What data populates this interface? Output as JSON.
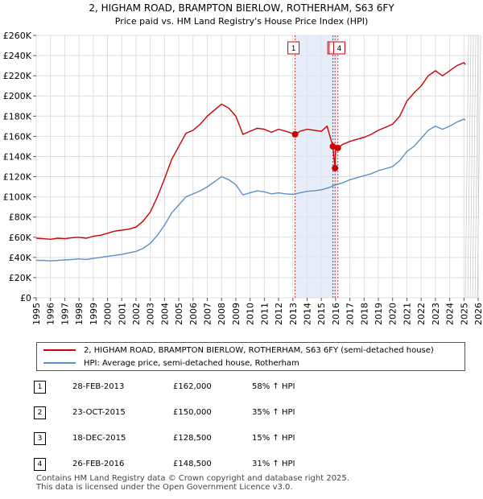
{
  "chart_data": {
    "type": "line",
    "title_line1": "2, HIGHAM ROAD, BRAMPTON BIERLOW, ROTHERHAM, S63 6FY",
    "title_line2": "Price paid vs. HM Land Registry's House Price Index (HPI)",
    "xlim": [
      1995,
      2026
    ],
    "ylim": [
      0,
      260000
    ],
    "x_ticks": [
      "1995",
      "1996",
      "1997",
      "1998",
      "1999",
      "2000",
      "2001",
      "2002",
      "2003",
      "2004",
      "2005",
      "2006",
      "2007",
      "2008",
      "2009",
      "2010",
      "2011",
      "2012",
      "2013",
      "2014",
      "2015",
      "2016",
      "2017",
      "2018",
      "2019",
      "2020",
      "2021",
      "2022",
      "2023",
      "2024",
      "2025",
      "2026"
    ],
    "y_ticks": [
      "£0",
      "£20K",
      "£40K",
      "£60K",
      "£80K",
      "£100K",
      "£120K",
      "£140K",
      "£160K",
      "£180K",
      "£200K",
      "£220K",
      "£240K",
      "£260K"
    ],
    "future_region_start": 2025.1,
    "highlight_band": [
      2013.16,
      2016.16
    ],
    "series": [
      {
        "name": "2, HIGHAM ROAD, BRAMPTON BIERLOW, ROTHERHAM, S63 6FY (semi-detached house)",
        "color": "#cc0000",
        "points": [
          [
            1995.0,
            59000
          ],
          [
            1995.5,
            58500
          ],
          [
            1996.0,
            58000
          ],
          [
            1996.5,
            59000
          ],
          [
            1997.0,
            58500
          ],
          [
            1997.5,
            59500
          ],
          [
            1998.0,
            60000
          ],
          [
            1998.5,
            59000
          ],
          [
            1999.0,
            61000
          ],
          [
            1999.5,
            62000
          ],
          [
            2000.0,
            64000
          ],
          [
            2000.5,
            66000
          ],
          [
            2001.0,
            67000
          ],
          [
            2001.5,
            68000
          ],
          [
            2002.0,
            70000
          ],
          [
            2002.5,
            76000
          ],
          [
            2003.0,
            85000
          ],
          [
            2003.5,
            100000
          ],
          [
            2004.0,
            118000
          ],
          [
            2004.5,
            137000
          ],
          [
            2005.0,
            150000
          ],
          [
            2005.5,
            163000
          ],
          [
            2006.0,
            166000
          ],
          [
            2006.5,
            172000
          ],
          [
            2007.0,
            180000
          ],
          [
            2007.5,
            186000
          ],
          [
            2008.0,
            192000
          ],
          [
            2008.5,
            188000
          ],
          [
            2009.0,
            180000
          ],
          [
            2009.5,
            162000
          ],
          [
            2010.0,
            165000
          ],
          [
            2010.5,
            168000
          ],
          [
            2011.0,
            167000
          ],
          [
            2011.5,
            164000
          ],
          [
            2012.0,
            167000
          ],
          [
            2012.5,
            165000
          ],
          [
            2013.16,
            162000
          ],
          [
            2013.5,
            165000
          ],
          [
            2014.0,
            167000
          ],
          [
            2014.5,
            166000
          ],
          [
            2015.0,
            165000
          ],
          [
            2015.4,
            170000
          ],
          [
            2015.81,
            150000
          ],
          [
            2015.96,
            128500
          ],
          [
            2016.0,
            147000
          ],
          [
            2016.16,
            148500
          ],
          [
            2016.5,
            152000
          ],
          [
            2017.0,
            155000
          ],
          [
            2017.5,
            157000
          ],
          [
            2018.0,
            159000
          ],
          [
            2018.5,
            162000
          ],
          [
            2019.0,
            166000
          ],
          [
            2019.5,
            169000
          ],
          [
            2020.0,
            172000
          ],
          [
            2020.5,
            180000
          ],
          [
            2021.0,
            195000
          ],
          [
            2021.5,
            203000
          ],
          [
            2022.0,
            210000
          ],
          [
            2022.5,
            220000
          ],
          [
            2023.0,
            225000
          ],
          [
            2023.5,
            220000
          ],
          [
            2024.0,
            225000
          ],
          [
            2024.5,
            230000
          ],
          [
            2025.0,
            233000
          ],
          [
            2025.1,
            231000
          ]
        ]
      },
      {
        "name": "HPI: Average price, semi-detached house, Rotherham",
        "color": "#5b8fcc",
        "points": [
          [
            1995.0,
            37000
          ],
          [
            1995.5,
            37000
          ],
          [
            1996.0,
            36500
          ],
          [
            1996.5,
            37000
          ],
          [
            1997.0,
            37500
          ],
          [
            1997.5,
            38000
          ],
          [
            1998.0,
            38500
          ],
          [
            1998.5,
            38000
          ],
          [
            1999.0,
            39000
          ],
          [
            1999.5,
            40000
          ],
          [
            2000.0,
            41000
          ],
          [
            2000.5,
            42000
          ],
          [
            2001.0,
            43000
          ],
          [
            2001.5,
            44500
          ],
          [
            2002.0,
            46000
          ],
          [
            2002.5,
            49000
          ],
          [
            2003.0,
            54000
          ],
          [
            2003.5,
            62000
          ],
          [
            2004.0,
            72000
          ],
          [
            2004.5,
            84000
          ],
          [
            2005.0,
            92000
          ],
          [
            2005.5,
            100000
          ],
          [
            2006.0,
            103000
          ],
          [
            2006.5,
            106000
          ],
          [
            2007.0,
            110000
          ],
          [
            2007.5,
            115000
          ],
          [
            2008.0,
            120000
          ],
          [
            2008.5,
            117000
          ],
          [
            2009.0,
            112000
          ],
          [
            2009.5,
            102000
          ],
          [
            2010.0,
            104000
          ],
          [
            2010.5,
            106000
          ],
          [
            2011.0,
            105000
          ],
          [
            2011.5,
            103000
          ],
          [
            2012.0,
            104000
          ],
          [
            2012.5,
            103000
          ],
          [
            2013.0,
            102500
          ],
          [
            2013.5,
            104000
          ],
          [
            2014.0,
            105500
          ],
          [
            2014.5,
            106000
          ],
          [
            2015.0,
            107000
          ],
          [
            2015.5,
            109000
          ],
          [
            2016.0,
            112000
          ],
          [
            2016.5,
            114000
          ],
          [
            2017.0,
            117000
          ],
          [
            2017.5,
            119000
          ],
          [
            2018.0,
            121000
          ],
          [
            2018.5,
            123000
          ],
          [
            2019.0,
            126000
          ],
          [
            2019.5,
            128000
          ],
          [
            2020.0,
            130000
          ],
          [
            2020.5,
            136000
          ],
          [
            2021.0,
            145000
          ],
          [
            2021.5,
            150000
          ],
          [
            2022.0,
            158000
          ],
          [
            2022.5,
            166000
          ],
          [
            2023.0,
            170000
          ],
          [
            2023.5,
            167000
          ],
          [
            2024.0,
            170000
          ],
          [
            2024.5,
            174000
          ],
          [
            2025.0,
            177000
          ],
          [
            2025.1,
            176000
          ]
        ]
      }
    ],
    "sale_markers": [
      {
        "label": "1",
        "x": 2013.16,
        "y": 162000
      },
      {
        "label": "2",
        "x": 2015.81,
        "y": 150000
      },
      {
        "label": "3",
        "x": 2015.96,
        "y": 128500
      },
      {
        "label": "4",
        "x": 2016.16,
        "y": 148500
      }
    ],
    "box_labels": [
      "1",
      "2",
      "3",
      "4"
    ]
  },
  "legend": {
    "property_label": "2, HIGHAM ROAD, BRAMPTON BIERLOW, ROTHERHAM, S63 6FY (semi-detached house)",
    "hpi_label": "HPI: Average price, semi-detached house, Rotherham"
  },
  "sales": [
    {
      "num": "1",
      "date": "28-FEB-2013",
      "price": "£162,000",
      "hpi": "58% ↑ HPI"
    },
    {
      "num": "2",
      "date": "23-OCT-2015",
      "price": "£150,000",
      "hpi": "35% ↑ HPI"
    },
    {
      "num": "3",
      "date": "18-DEC-2015",
      "price": "£128,500",
      "hpi": "15% ↑ HPI"
    },
    {
      "num": "4",
      "date": "26-FEB-2016",
      "price": "£148,500",
      "hpi": "31% ↑ HPI"
    }
  ],
  "footer": {
    "line1": "Contains HM Land Registry data © Crown copyright and database right 2025.",
    "line2": "This data is licensed under the Open Government Licence v3.0."
  },
  "colors": {
    "property": "#cc0000",
    "hpi": "#5b8fcc"
  }
}
